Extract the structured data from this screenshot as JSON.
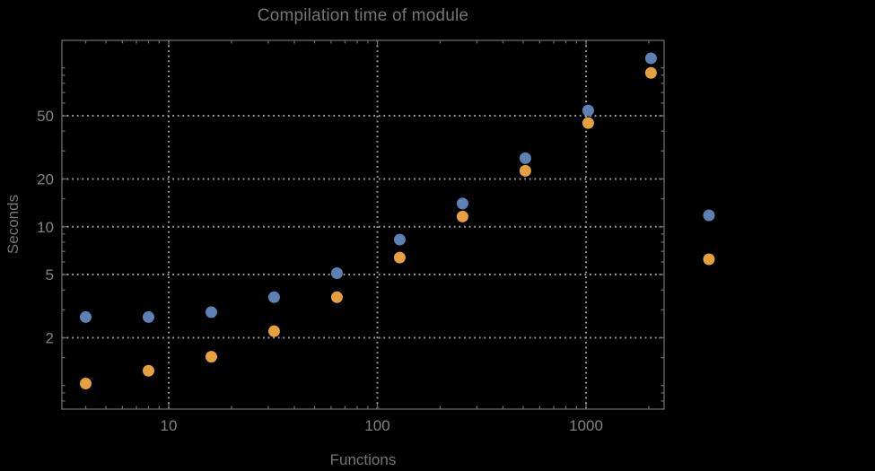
{
  "chart_data": {
    "type": "scatter",
    "title": "Compilation time of module",
    "xlabel": "Functions",
    "ylabel": "Seconds",
    "x_scale": "log",
    "y_scale": "log",
    "xlim": [
      3.1,
      2360
    ],
    "ylim": [
      0.72,
      148
    ],
    "grid": "dotted",
    "x": [
      4,
      8,
      16,
      32,
      64,
      128,
      256,
      512,
      1024,
      2048
    ],
    "series": [
      {
        "name": "series-1-blue",
        "color": "#5e81b5",
        "values": [
          2.7,
          2.7,
          2.9,
          3.6,
          5.1,
          8.3,
          14,
          27,
          54,
          115
        ]
      },
      {
        "name": "series-2-orange",
        "color": "#e5a13d",
        "values": [
          1.03,
          1.24,
          1.52,
          2.2,
          3.6,
          6.4,
          11.6,
          22.5,
          45,
          93
        ]
      }
    ],
    "x_ticks": {
      "values": [
        10,
        100,
        1000
      ],
      "labels": [
        "10",
        "100",
        "1000"
      ]
    },
    "y_ticks": {
      "values": [
        2,
        5,
        10,
        20,
        50
      ],
      "labels": [
        "2",
        "5",
        "10",
        "20",
        "50"
      ]
    },
    "legend": {
      "position": "outside-right",
      "entries": [
        {
          "series": "series-1-blue",
          "label": "",
          "color": "#5e81b5"
        },
        {
          "series": "series-2-orange",
          "label": "",
          "color": "#e5a13d"
        }
      ]
    }
  },
  "colors": {
    "background": "#000000",
    "frame": "#6a6a6a",
    "grid": "#9e9e9e",
    "title_text": "#757575",
    "axis_label_text": "#757575",
    "tick_label_text": "#828282"
  }
}
